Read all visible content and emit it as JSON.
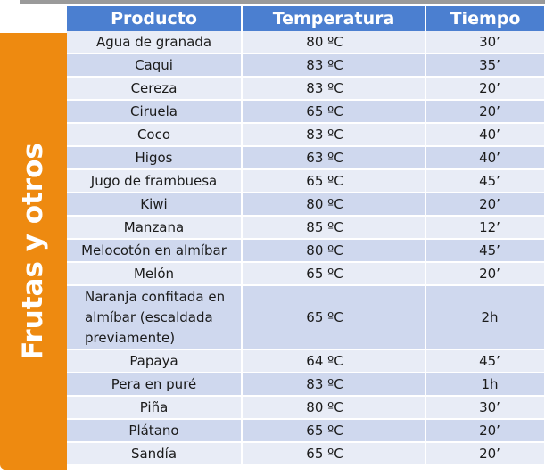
{
  "side_label": "Frutas y otros",
  "headers": {
    "producto": "Producto",
    "temperatura": "Temperatura",
    "tiempo": "Tiempo"
  },
  "rows": [
    {
      "producto": "Agua de granada",
      "temperatura": "80 ºC",
      "tiempo": "30’"
    },
    {
      "producto": "Caqui",
      "temperatura": "83 ºC",
      "tiempo": "35’"
    },
    {
      "producto": "Cereza",
      "temperatura": "83 ºC",
      "tiempo": "20’"
    },
    {
      "producto": "Ciruela",
      "temperatura": "65 ºC",
      "tiempo": "20’"
    },
    {
      "producto": "Coco",
      "temperatura": "83 ºC",
      "tiempo": "40’"
    },
    {
      "producto": "Higos",
      "temperatura": "63 ºC",
      "tiempo": "40’"
    },
    {
      "producto": "Jugo de frambuesa",
      "temperatura": "65 ºC",
      "tiempo": "45’"
    },
    {
      "producto": "Kiwi",
      "temperatura": "80 ºC",
      "tiempo": "20’"
    },
    {
      "producto": "Manzana",
      "temperatura": "85 ºC",
      "tiempo": "12’"
    },
    {
      "producto": "Melocotón en almíbar",
      "temperatura": "80 ºC",
      "tiempo": "45’"
    },
    {
      "producto": "Melón",
      "temperatura": "65 ºC",
      "tiempo": "20’"
    },
    {
      "producto": "Naranja confitada en\nalmíbar (escaldada\npreviamente)",
      "temperatura": "65 ºC",
      "tiempo": "2h"
    },
    {
      "producto": "Papaya",
      "temperatura": "64 ºC",
      "tiempo": "45’"
    },
    {
      "producto": "Pera en puré",
      "temperatura": "83 ºC",
      "tiempo": "1h"
    },
    {
      "producto": "Piña",
      "temperatura": "80 ºC",
      "tiempo": "30’"
    },
    {
      "producto": "Plátano",
      "temperatura": "65 ºC",
      "tiempo": "20’"
    },
    {
      "producto": "Sandía",
      "temperatura": "65 ºC",
      "tiempo": "20’"
    }
  ],
  "colors": {
    "header": "#4b7fd0",
    "side_tab": "#ee8a10",
    "row_light": "#e8ecf6",
    "row_dark": "#cfd8ee"
  }
}
